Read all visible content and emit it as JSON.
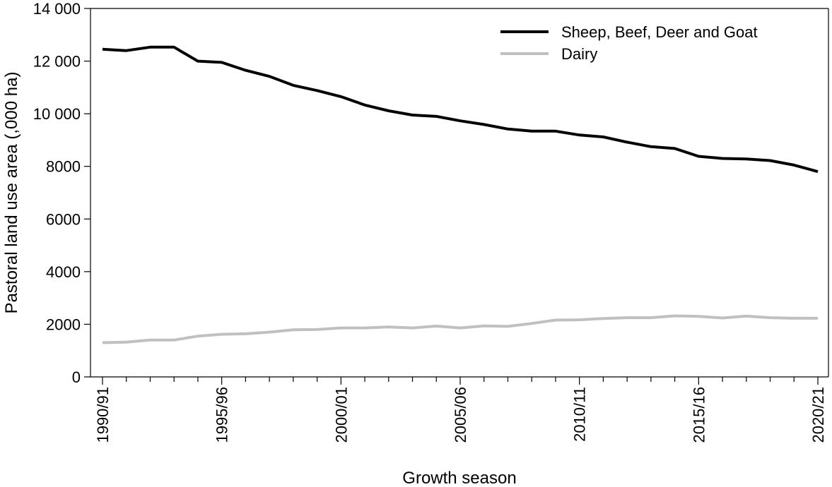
{
  "chart_data": {
    "type": "line",
    "title": "",
    "xlabel": "Growth season",
    "ylabel": "Pastoral land use area (,000 ha)",
    "ylim": [
      0,
      14000
    ],
    "yticks": [
      0,
      2000,
      4000,
      6000,
      8000,
      10000,
      12000,
      14000
    ],
    "ytick_labels": [
      "0",
      "2000",
      "4000",
      "6000",
      "8000",
      "10 000",
      "12 000",
      "14 000"
    ],
    "x": [
      "1990/91",
      "1991/92",
      "1992/93",
      "1993/94",
      "1994/95",
      "1995/96",
      "1996/97",
      "1997/98",
      "1998/99",
      "1999/00",
      "2000/01",
      "2001/02",
      "2002/03",
      "2003/04",
      "2004/05",
      "2005/06",
      "2006/07",
      "2007/08",
      "2008/09",
      "2009/10",
      "2010/11",
      "2011/12",
      "2012/13",
      "2013/14",
      "2014/15",
      "2015/16",
      "2016/17",
      "2017/18",
      "2018/19",
      "2019/20",
      "2020/21"
    ],
    "xtick_labels": [
      "1990/91",
      "1995/96",
      "2000/01",
      "2005/06",
      "2010/11",
      "2015/16",
      "2020/21"
    ],
    "grid": false,
    "legend_position": "top-right",
    "series": [
      {
        "name": "Sheep, Beef, Deer and Goat",
        "color": "#000000",
        "values": [
          12450,
          12400,
          12530,
          12530,
          12000,
          11950,
          11650,
          11420,
          11080,
          10880,
          10650,
          10330,
          10110,
          9950,
          9900,
          9730,
          9590,
          9420,
          9340,
          9340,
          9190,
          9120,
          8920,
          8750,
          8680,
          8380,
          8300,
          8280,
          8220,
          8050,
          7800
        ]
      },
      {
        "name": "Dairy",
        "color": "#c0c0c0",
        "values": [
          1300,
          1320,
          1400,
          1400,
          1550,
          1620,
          1640,
          1700,
          1790,
          1800,
          1860,
          1860,
          1900,
          1860,
          1930,
          1860,
          1940,
          1920,
          2030,
          2160,
          2170,
          2220,
          2250,
          2250,
          2320,
          2300,
          2240,
          2310,
          2250,
          2230,
          2230
        ]
      }
    ]
  }
}
